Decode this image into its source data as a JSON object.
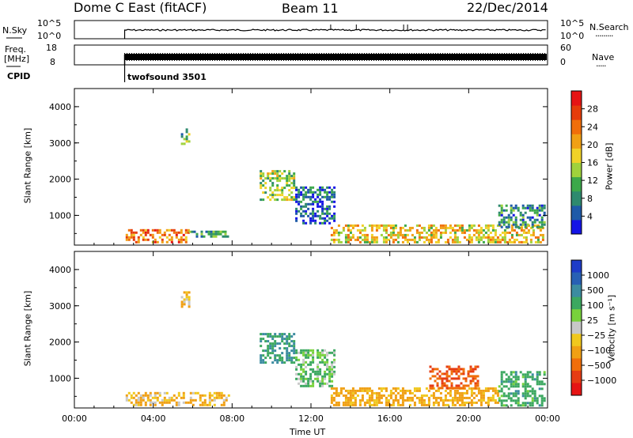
{
  "header": {
    "station": "Dome C East (fitACF)",
    "beam": "Beam 11",
    "date": "22/Dec/2014"
  },
  "noise_panel": {
    "left_label": "N.Sky",
    "left_ticks": [
      "10^5",
      "10^0"
    ],
    "right_ticks": [
      "10^5",
      "10^0"
    ],
    "right_label": "N.Search",
    "right_dots": "·········"
  },
  "freq_panel": {
    "left_label_1": "Freq.",
    "left_label_2": "[MHz]",
    "left_ticks": [
      "18",
      "8"
    ],
    "right_ticks": [
      "60",
      "0"
    ],
    "right_label": "Nave",
    "right_dots": "·····"
  },
  "cpid": {
    "label": "CPID",
    "value": "twofsound 3501"
  },
  "x_axis": {
    "label": "Time UT",
    "ticks": [
      "00:00",
      "04:00",
      "08:00",
      "12:00",
      "16:00",
      "20:00",
      "00:00"
    ]
  },
  "chart_data": [
    {
      "type": "heatmap",
      "title": "",
      "xlabel": "Time UT",
      "ylabel": "Slant Range [km]",
      "x_range_hours": [
        0,
        24
      ],
      "ylim": [
        180,
        4500
      ],
      "y_ticks": [
        "1000",
        "2000",
        "3000",
        "4000"
      ],
      "colorbar": {
        "label": "Power [dB]",
        "ticks": [
          "4",
          "8",
          "12",
          "16",
          "20",
          "24",
          "28"
        ],
        "range": [
          0,
          32
        ],
        "colors": [
          "#1414e6",
          "#1e5aa8",
          "#2e8a6e",
          "#3ca84a",
          "#a0d23c",
          "#f0d228",
          "#f0a014",
          "#f06e0a",
          "#e63c0a",
          "#e61414"
        ]
      },
      "data_start_hour": 2.55,
      "echo_regions": [
        {
          "t0": 2.6,
          "t1": 5.8,
          "r0": 250,
          "r1": 620,
          "value": 24
        },
        {
          "t0": 5.8,
          "t1": 7.8,
          "r0": 400,
          "r1": 580,
          "value": 10
        },
        {
          "t0": 9.4,
          "t1": 11.2,
          "r0": 1450,
          "r1": 2250,
          "value": 14
        },
        {
          "t0": 11.2,
          "t1": 13.2,
          "r0": 800,
          "r1": 1800,
          "value": 6
        },
        {
          "t0": 13.0,
          "t1": 23.8,
          "r0": 280,
          "r1": 750,
          "value": 18
        },
        {
          "t0": 21.5,
          "t1": 23.8,
          "r0": 650,
          "r1": 1300,
          "value": 8
        },
        {
          "t0": 5.4,
          "t1": 5.8,
          "r0": 3000,
          "r1": 3400,
          "value": 12
        }
      ]
    },
    {
      "type": "heatmap",
      "title": "",
      "xlabel": "Time UT",
      "ylabel": "Slant Range [km]",
      "x_range_hours": [
        0,
        24
      ],
      "ylim": [
        180,
        4500
      ],
      "y_ticks": [
        "1000",
        "2000",
        "3000",
        "4000"
      ],
      "colorbar": {
        "label": "Velocity [m s⁻¹]",
        "ticks": [
          "1000",
          "500",
          "100",
          "25",
          "−25",
          "−100",
          "−500",
          "−1000"
        ],
        "colors": [
          "#1e3cc8",
          "#2860b4",
          "#3c8ca0",
          "#3ca860",
          "#78d23c",
          "#c8c8c8",
          "#f0c81e",
          "#f0a014",
          "#f06e0a",
          "#e63c14",
          "#e61414"
        ]
      },
      "data_start_hour": 2.55,
      "echo_regions": [
        {
          "t0": 2.6,
          "t1": 7.8,
          "r0": 250,
          "r1": 620,
          "value": -100
        },
        {
          "t0": 9.4,
          "t1": 11.2,
          "r0": 1450,
          "r1": 2250,
          "value": 300
        },
        {
          "t0": 11.2,
          "t1": 13.2,
          "r0": 800,
          "r1": 1800,
          "value": 100
        },
        {
          "t0": 13.0,
          "t1": 21.5,
          "r0": 280,
          "r1": 750,
          "value": -150
        },
        {
          "t0": 18.0,
          "t1": 20.5,
          "r0": 700,
          "r1": 1350,
          "value": -500
        },
        {
          "t0": 21.5,
          "t1": 23.8,
          "r0": 280,
          "r1": 1200,
          "value": 200
        },
        {
          "t0": 5.4,
          "t1": 5.8,
          "r0": 3000,
          "r1": 3400,
          "value": -100
        }
      ]
    }
  ]
}
